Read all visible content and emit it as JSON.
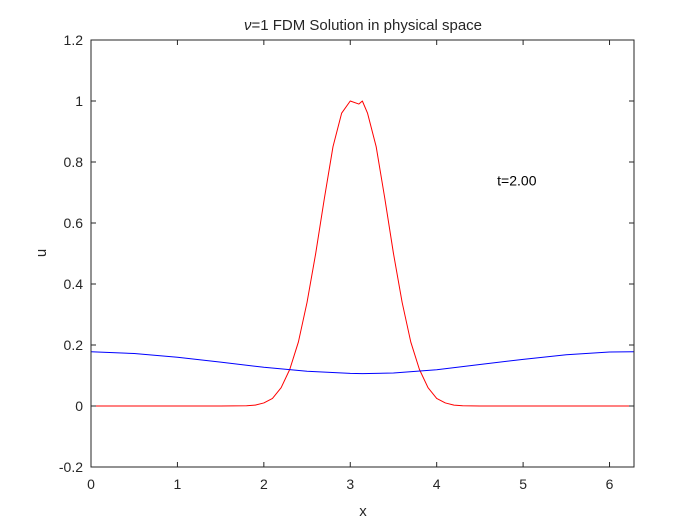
{
  "chart_data": {
    "type": "line",
    "title_symbol": "ν",
    "title_rest": "=1 FDM Solution in physical space",
    "xlabel": "x",
    "ylabel": "u",
    "xlim": [
      0,
      6.2832
    ],
    "ylim": [
      -0.2,
      1.2
    ],
    "xticks": [
      0,
      1,
      2,
      3,
      4,
      5,
      6
    ],
    "yticks": [
      -0.2,
      0,
      0.2,
      0.4,
      0.6,
      0.8,
      1,
      1.2
    ],
    "xtick_labels": [
      "0",
      "1",
      "2",
      "3",
      "4",
      "5",
      "6"
    ],
    "ytick_labels": [
      "-0.2",
      "0",
      "0.2",
      "0.4",
      "0.6",
      "0.8",
      "1",
      "1.2"
    ],
    "grid": false,
    "box": true,
    "annotation": {
      "text": "t=2.00",
      "x": 4.7,
      "y": 0.74
    },
    "series": [
      {
        "color": "#ff0000",
        "x": [
          0,
          1.0,
          1.5,
          1.8,
          1.9,
          2.0,
          2.1,
          2.2,
          2.3,
          2.4,
          2.5,
          2.6,
          2.7,
          2.8,
          2.9,
          3.0,
          3.1,
          3.14,
          3.2,
          3.3,
          3.4,
          3.5,
          3.6,
          3.7,
          3.8,
          3.9,
          4.0,
          4.1,
          4.2,
          4.3,
          4.5,
          5.0,
          6.2832
        ],
        "y": [
          0,
          0,
          0,
          0.001,
          0.003,
          0.01,
          0.025,
          0.06,
          0.12,
          0.21,
          0.34,
          0.5,
          0.68,
          0.85,
          0.96,
          1.0,
          0.99,
          1.0,
          0.96,
          0.85,
          0.68,
          0.5,
          0.34,
          0.21,
          0.12,
          0.06,
          0.025,
          0.01,
          0.003,
          0.001,
          0,
          0,
          0
        ]
      },
      {
        "color": "#0000ff",
        "x": [
          0,
          0.5,
          1.0,
          1.5,
          2.0,
          2.5,
          3.0,
          3.1416,
          3.5,
          4.0,
          4.5,
          5.0,
          5.5,
          6.0,
          6.2832
        ],
        "y": [
          0.178,
          0.172,
          0.16,
          0.144,
          0.127,
          0.114,
          0.107,
          0.106,
          0.108,
          0.119,
          0.136,
          0.153,
          0.168,
          0.177,
          0.178
        ]
      }
    ]
  }
}
